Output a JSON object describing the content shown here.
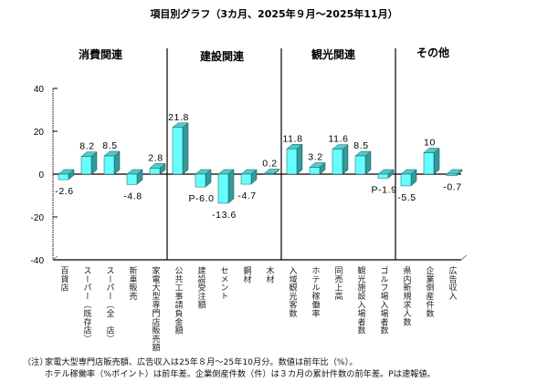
{
  "chart_data": {
    "type": "bar",
    "title": "項目別グラフ（3カ月、2025年９月～2025年11月）",
    "xlabel": "",
    "ylabel": "",
    "ylim": [
      -40,
      40
    ],
    "yticks": [
      40,
      20,
      0,
      -20,
      -40
    ],
    "grid": false,
    "legend": "none",
    "groups": [
      {
        "name": "消費関連",
        "count": 5
      },
      {
        "name": "建設関連",
        "count": 5
      },
      {
        "name": "観光関連",
        "count": 5
      },
      {
        "name": "その他",
        "count": 3
      }
    ],
    "categories": [
      "百貨店",
      "スーパー（既存店）",
      "スーパー（全　店）",
      "新車販売",
      "家電大型専門店販売額",
      "公共工事請負金額",
      "建設受注額",
      "セメント",
      "鋼材",
      "木材",
      "入域観光客数",
      "ホテル稼働率",
      "同売上高",
      "観光施設入場者数",
      "ゴルフ場入場者数",
      "県内新規求人数",
      "企業倒産件数",
      "広告収入"
    ],
    "values": [
      -2.6,
      8.2,
      8.5,
      -4.8,
      2.8,
      21.8,
      -6.0,
      -13.6,
      -4.7,
      0.2,
      11.8,
      3.2,
      11.6,
      8.5,
      -1.9,
      -5.5,
      10,
      -0.7
    ],
    "value_labels": [
      "-2.6",
      "8.2",
      "8.5",
      "-4.8",
      "2.8",
      "21.8",
      "P-6.0",
      "-13.6",
      "-4.7",
      "0.2",
      "11.8",
      "3.2",
      "11.6",
      "8.5",
      "P-1.9",
      "-5.5",
      "10",
      "-0.7"
    ],
    "colors": {
      "bar_front": "#66FFFF",
      "bar_side": "#339999",
      "bar_top": "#4DCCCC",
      "bar_edge": "#1F5555",
      "axis": "#000000"
    }
  },
  "notes": {
    "prefix": "（注）",
    "lines": [
      "家電大型専門店販売額、広告収入は25年８月～25年10月分。数値は前年比（%）。",
      "ホテル稼働率（%ポイント）は前年差。企業倒産件数（件）は３カ月の累計件数の前年差。Pは速報値。"
    ]
  }
}
